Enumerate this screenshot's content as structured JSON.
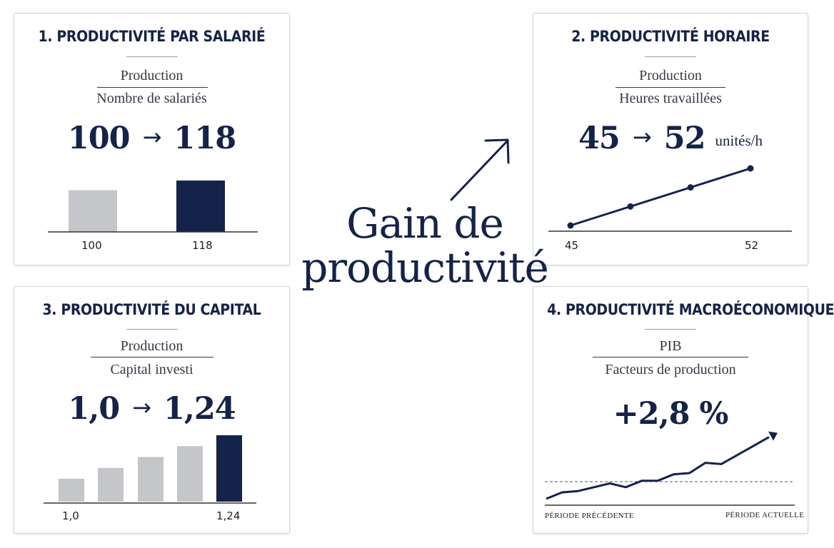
{
  "colors": {
    "navy": "#14234a",
    "grey": "#c4c6c9",
    "text": "#333a45"
  },
  "center": {
    "line1": "Gain de",
    "line2": "productivité",
    "arrow_icon": "arrow-up-right-icon"
  },
  "cards": {
    "c1": {
      "title": "1. PRODUCTIVITÉ PAR SALARIÉ",
      "numerator": "Production",
      "denominator": "Nombre de salariés",
      "from": "100",
      "arrow": "→",
      "to": "118",
      "labels": [
        "100",
        "118"
      ]
    },
    "c2": {
      "title": "2. PRODUCTIVITÉ HORAIRE",
      "numerator": "Production",
      "denominator": "Heures travaillées",
      "from": "45",
      "arrow": "→",
      "to": "52",
      "unit": "unités/h",
      "labels": [
        "45",
        "52"
      ]
    },
    "c3": {
      "title": "3. PRODUCTIVITÉ DU CAPITAL",
      "numerator": "Production",
      "denominator": "Capital investi",
      "from": "1,0",
      "arrow": "→",
      "to": "1,24",
      "labels": [
        "1,0",
        "1,24"
      ]
    },
    "c4": {
      "title": "4. PRODUCTIVITÉ MACROÉCONOMIQUE",
      "numerator": "PIB",
      "denominator": "Facteurs de production",
      "headline": "+2,8 %",
      "labels": [
        "PÉRIODE PRÉCÉDENTE",
        "PÉRIODE ACTUELLE"
      ]
    }
  },
  "chart_data": [
    {
      "type": "bar",
      "categories": [
        "100",
        "118"
      ],
      "values": [
        100,
        118
      ]
    },
    {
      "type": "line",
      "x": [
        45,
        47.33,
        49.67,
        52
      ],
      "y": [
        45,
        47.33,
        49.67,
        52
      ]
    },
    {
      "type": "bar",
      "categories": [
        "1,0",
        "",
        "",
        "",
        "1,24"
      ],
      "values": [
        1.0,
        1.06,
        1.12,
        1.18,
        1.24
      ]
    },
    {
      "type": "line",
      "y": [
        1.0,
        1.25,
        1.3,
        1.45,
        1.6,
        1.45,
        1.7,
        1.7,
        1.95,
        2.0,
        2.4,
        2.35,
        2.7,
        3.05,
        3.4
      ]
    }
  ]
}
